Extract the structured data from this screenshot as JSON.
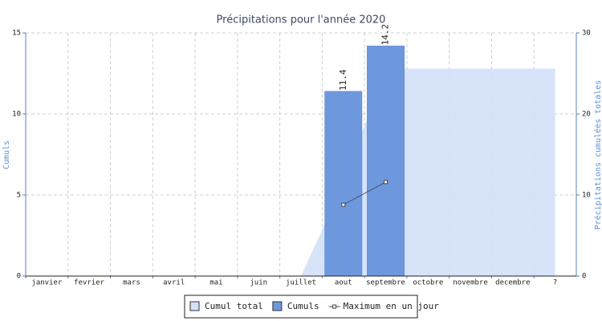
{
  "chart_data": {
    "type": "combo",
    "title": "Précipitations pour l'année 2020",
    "y_label": "Cumuls",
    "y2_label": "Précipitations cumulées totales",
    "categories": [
      "janvier",
      "fevrier",
      "mars",
      "avril",
      "mai",
      "juin",
      "juillet",
      "aout",
      "septembre",
      "octobre",
      "novembre",
      "decembre",
      "?"
    ],
    "series": [
      {
        "name": "Cumul total",
        "type": "area",
        "axis": "y2",
        "color": "#d2e0f8",
        "values": [
          null,
          null,
          null,
          null,
          null,
          null,
          0,
          11.4,
          25.6,
          25.6,
          25.6,
          25.6,
          25.6
        ]
      },
      {
        "name": "Cumuls",
        "type": "bar",
        "color": "#6e98de",
        "values": [
          null,
          null,
          null,
          null,
          null,
          null,
          null,
          11.4,
          14.2,
          null,
          null,
          null,
          null
        ]
      },
      {
        "name": "Maximum en un jour",
        "type": "line",
        "color": "#444444",
        "values": [
          null,
          null,
          null,
          null,
          null,
          null,
          null,
          4.4,
          5.8,
          null,
          null,
          null,
          null
        ]
      }
    ],
    "ylim": [
      0,
      15
    ],
    "yticks": [
      0,
      5,
      10,
      15
    ],
    "y2lim": [
      0,
      30
    ],
    "y2ticks": [
      0,
      10,
      20,
      30
    ],
    "grid": true,
    "legend": "bottom"
  }
}
